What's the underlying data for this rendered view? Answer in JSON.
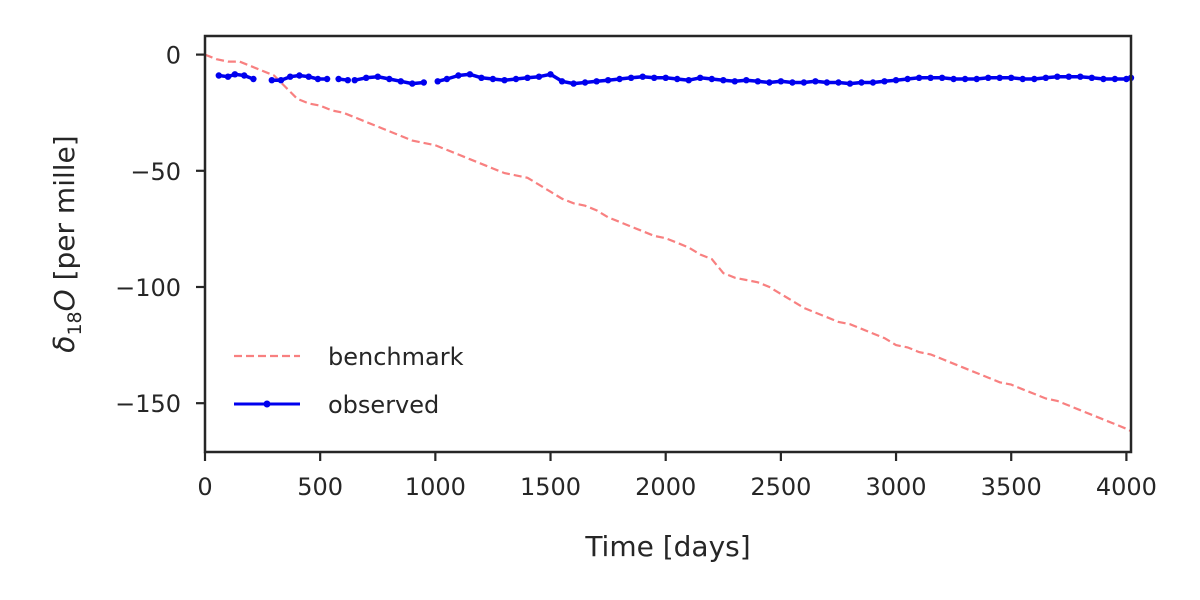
{
  "chart_data": {
    "type": "line",
    "xlabel": "Time [days]",
    "ylabel_main": "δ",
    "ylabel_sub": "18",
    "ylabel_var": "O",
    "ylabel_rest": " [per mille]",
    "xlim": [
      0,
      4020
    ],
    "ylim": [
      -171,
      8
    ],
    "xticks": [
      0,
      500,
      1000,
      1500,
      2000,
      2500,
      3000,
      3500,
      4000
    ],
    "yticks": [
      0,
      -50,
      -100,
      -150
    ],
    "xtick_labels": [
      "0",
      "500",
      "1000",
      "1500",
      "2000",
      "2500",
      "3000",
      "3500",
      "4000"
    ],
    "ytick_labels": [
      "0",
      "−50",
      "−100",
      "−150"
    ],
    "legend_position": "lower-left",
    "grid": false,
    "series": [
      {
        "name": "benchmark",
        "style": "dashed",
        "color": "#f88080",
        "x": [
          0,
          50,
          100,
          150,
          200,
          250,
          300,
          350,
          400,
          450,
          500,
          550,
          600,
          650,
          700,
          750,
          800,
          850,
          900,
          950,
          1000,
          1050,
          1100,
          1150,
          1200,
          1250,
          1300,
          1350,
          1400,
          1450,
          1500,
          1550,
          1600,
          1650,
          1700,
          1750,
          1800,
          1850,
          1900,
          1950,
          2000,
          2050,
          2100,
          2150,
          2200,
          2250,
          2300,
          2350,
          2400,
          2450,
          2500,
          2550,
          2600,
          2650,
          2700,
          2750,
          2800,
          2850,
          2900,
          2950,
          3000,
          3050,
          3100,
          3150,
          3200,
          3250,
          3300,
          3350,
          3400,
          3450,
          3500,
          3550,
          3600,
          3650,
          3700,
          3750,
          3800,
          3850,
          3900,
          3950,
          4000,
          4020
        ],
        "y": [
          0,
          -2,
          -3,
          -3,
          -5,
          -7,
          -9,
          -14,
          -19,
          -21,
          -22,
          -24,
          -25,
          -27,
          -29,
          -31,
          -33,
          -35,
          -37,
          -38,
          -39,
          -41,
          -43,
          -45,
          -47,
          -49,
          -51,
          -52,
          -53,
          -56,
          -59,
          -62,
          -64,
          -65,
          -67,
          -70,
          -72,
          -74,
          -76,
          -78,
          -79,
          -81,
          -83,
          -86,
          -88,
          -94,
          -96,
          -97,
          -98,
          -100,
          -103,
          -106,
          -109,
          -111,
          -113,
          -115,
          -116,
          -118,
          -120,
          -122,
          -125,
          -126,
          -128,
          -129,
          -131,
          -133,
          -135,
          -137,
          -139,
          -141,
          -142,
          -144,
          -146,
          -148,
          -149,
          -151,
          -153,
          -155,
          -157,
          -159,
          -161,
          -162
        ]
      },
      {
        "name": "observed",
        "style": "solid-markers",
        "color": "#0000ee",
        "segments": [
          {
            "x": [
              60,
              100,
              130,
              170,
              210
            ],
            "y": [
              -9,
              -9.5,
              -8.5,
              -9,
              -10.5
            ]
          },
          {
            "x": [
              290,
              330,
              370,
              410,
              450,
              490,
              530
            ],
            "y": [
              -11,
              -11,
              -9.5,
              -9,
              -9.5,
              -10.5,
              -10.5
            ]
          },
          {
            "x": [
              580,
              620
            ],
            "y": [
              -10.5,
              -11
            ]
          },
          {
            "x": [
              650,
              700,
              750,
              800,
              850,
              900,
              950
            ],
            "y": [
              -11,
              -10,
              -9.5,
              -10.5,
              -11.5,
              -12.5,
              -12
            ]
          },
          {
            "x": [
              1010,
              1050,
              1100,
              1150,
              1200,
              1250,
              1300,
              1350,
              1400,
              1450,
              1500,
              1550,
              1600,
              1650,
              1700,
              1750,
              1800,
              1850,
              1900,
              1950,
              2000,
              2050,
              2100,
              2150,
              2200,
              2250,
              2300,
              2350,
              2400,
              2450,
              2500,
              2550,
              2600,
              2650,
              2700,
              2750,
              2800,
              2850,
              2900,
              2950,
              3000,
              3050,
              3100,
              3150,
              3200,
              3250,
              3300,
              3350,
              3400,
              3450,
              3500,
              3550,
              3600,
              3650,
              3700,
              3750,
              3800,
              3850,
              3900,
              3950,
              4000,
              4020
            ],
            "y": [
              -11.5,
              -10.5,
              -9,
              -8.5,
              -10,
              -10.5,
              -11,
              -10.5,
              -10,
              -9.5,
              -8.5,
              -11.5,
              -12.5,
              -12,
              -11.5,
              -11,
              -10.5,
              -10,
              -9.5,
              -10,
              -10,
              -10.5,
              -11,
              -10,
              -10.5,
              -11,
              -11.5,
              -11,
              -11.5,
              -12,
              -11.5,
              -12,
              -12,
              -11.5,
              -12,
              -12,
              -12.5,
              -12,
              -12,
              -11.5,
              -11,
              -10.5,
              -10,
              -10,
              -10,
              -10.5,
              -10.5,
              -10.5,
              -10,
              -10,
              -10,
              -10.5,
              -10.5,
              -10,
              -9.5,
              -9.5,
              -9.5,
              -10,
              -10.5,
              -10.5,
              -10.5,
              -10
            ]
          }
        ]
      }
    ]
  }
}
